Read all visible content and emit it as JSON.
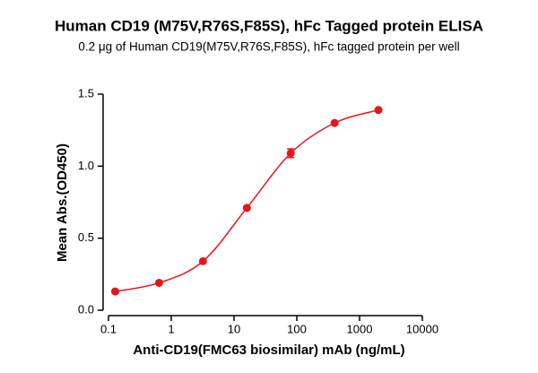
{
  "chart_data": {
    "type": "scatter",
    "title": "Human CD19 (M75V,R76S,F85S), hFc Tagged protein ELISA",
    "subtitle": "0.2 μg of Human CD19(M75V,R76S,F85S), hFc tagged protein per well",
    "x_label": "Anti-CD19(FMC63 biosimilar) mAb (ng/mL)",
    "y_label": "Mean Abs.(OD450)",
    "x": [
      0.128,
      0.64,
      3.2,
      16,
      80,
      400,
      2000
    ],
    "series": [
      {
        "color": "#e8141c",
        "values": [
          0.13,
          0.19,
          0.34,
          0.71,
          1.09,
          1.3,
          1.39
        ],
        "errors": [
          0.005,
          0.005,
          0.005,
          0.01,
          0.03,
          0.005,
          0.005
        ]
      }
    ],
    "xlog": true,
    "xlim": [
      0.1,
      10000
    ],
    "xticks": [
      0.1,
      1,
      10,
      100,
      1000,
      10000
    ],
    "ylim": [
      0,
      1.5
    ],
    "yticks": [
      {
        "value": 0,
        "label": "0.0"
      },
      0.5,
      {
        "value": 1,
        "label": "1.0"
      },
      1.5
    ]
  }
}
